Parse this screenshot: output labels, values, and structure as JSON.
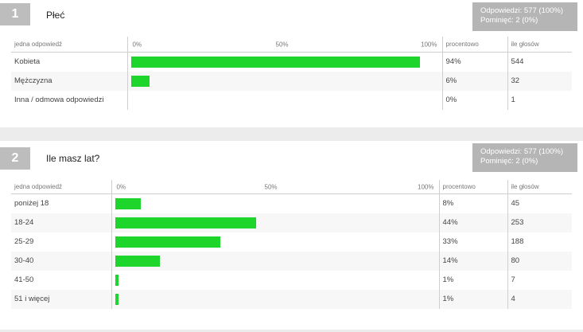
{
  "questions": [
    {
      "number": "1",
      "title": "Płeć",
      "stats": {
        "answers": "Odpowiedzi: 577 (100%)",
        "skipped": "Pominięć: 2 (0%)"
      },
      "headers": {
        "answer": "jedna odpowiedź",
        "axis": [
          "0%",
          "50%",
          "100%"
        ],
        "percent": "procentowo",
        "votes": "ile głosów"
      },
      "rows": [
        {
          "label": "Kobieta",
          "percent": "94%",
          "votes": "544",
          "value": 94
        },
        {
          "label": "Mężczyzna",
          "percent": "6%",
          "votes": "32",
          "value": 6
        },
        {
          "label": "Inna / odmowa odpowiedzi",
          "percent": "0%",
          "votes": "1",
          "value": 0
        }
      ]
    },
    {
      "number": "2",
      "title": "Ile masz lat?",
      "stats": {
        "answers": "Odpowiedzi: 577 (100%)",
        "skipped": "Pominięć: 2 (0%)"
      },
      "headers": {
        "answer": "jedna odpowiedź",
        "axis": [
          "0%",
          "50%",
          "100%"
        ],
        "percent": "procentowo",
        "votes": "ile głosów"
      },
      "rows": [
        {
          "label": "poniżej 18",
          "percent": "8%",
          "votes": "45",
          "value": 8
        },
        {
          "label": "18-24",
          "percent": "44%",
          "votes": "253",
          "value": 44
        },
        {
          "label": "25-29",
          "percent": "33%",
          "votes": "188",
          "value": 33
        },
        {
          "label": "30-40",
          "percent": "14%",
          "votes": "80",
          "value": 14
        },
        {
          "label": "41-50",
          "percent": "1%",
          "votes": "7",
          "value": 1
        },
        {
          "label": "51 i więcej",
          "percent": "1%",
          "votes": "4",
          "value": 1
        }
      ]
    }
  ],
  "colors": {
    "bar": "#1ed52b",
    "badge": "#bdbdbd",
    "stats_box": "#b5b5b5"
  }
}
